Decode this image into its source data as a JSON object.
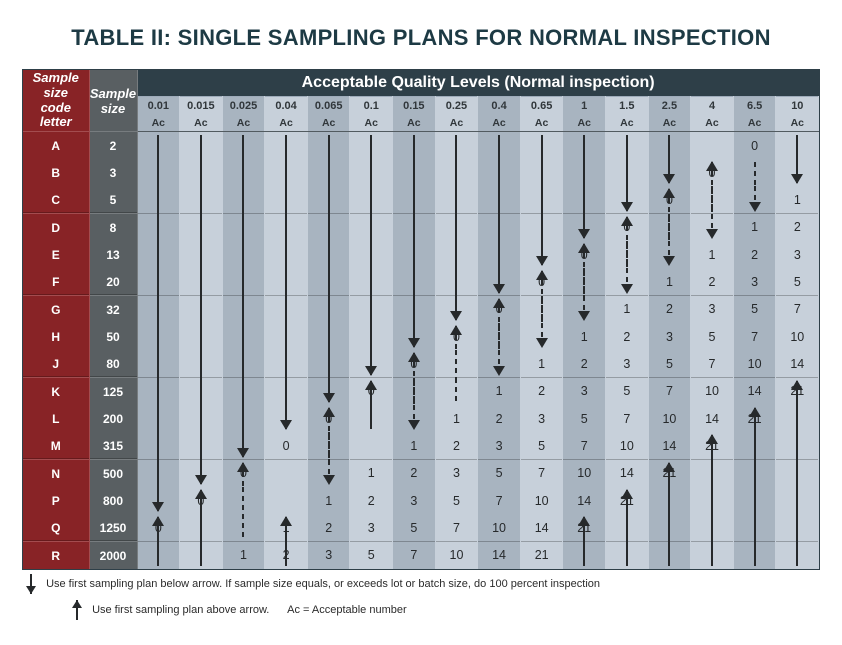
{
  "title": "TABLE II: SINGLE SAMPLING PLANS FOR NORMAL INSPECTION",
  "headers": {
    "corner": "Sample size\ncode letter",
    "sampleSize": "Sample\nsize",
    "aqlTitle": "Acceptable Quality Levels (Normal inspection)",
    "acLabel": "Ac"
  },
  "aqlLevels": [
    "0.01",
    "0.015",
    "0.025",
    "0.04",
    "0.065",
    "0.1",
    "0.15",
    "0.25",
    "0.4",
    "0.65",
    "1",
    "1.5",
    "2.5",
    "4",
    "6.5",
    "10"
  ],
  "rows": [
    {
      "code": "A",
      "size": "2"
    },
    {
      "code": "B",
      "size": "3"
    },
    {
      "code": "C",
      "size": "5"
    },
    {
      "code": "D",
      "size": "8"
    },
    {
      "code": "E",
      "size": "13"
    },
    {
      "code": "F",
      "size": "20"
    },
    {
      "code": "G",
      "size": "32"
    },
    {
      "code": "H",
      "size": "50"
    },
    {
      "code": "J",
      "size": "80"
    },
    {
      "code": "K",
      "size": "125"
    },
    {
      "code": "L",
      "size": "200"
    },
    {
      "code": "M",
      "size": "315"
    },
    {
      "code": "N",
      "size": "500"
    },
    {
      "code": "P",
      "size": "800"
    },
    {
      "code": "Q",
      "size": "1250"
    },
    {
      "code": "R",
      "size": "2000"
    }
  ],
  "rowSeparatorsAfter": [
    2,
    5,
    8,
    11,
    14
  ],
  "cells": {
    "A": {
      "6.5": "0"
    },
    "B": {
      "4": "0"
    },
    "C": {
      "2.5": "0",
      "10": "1"
    },
    "D": {
      "1.5": "0",
      "6.5": "1",
      "10": "2"
    },
    "E": {
      "1": "0",
      "4": "1",
      "6.5": "2",
      "10": "3"
    },
    "F": {
      "0.65": "0",
      "2.5": "1",
      "4": "2",
      "6.5": "3",
      "10": "5"
    },
    "G": {
      "0.4": "0",
      "1.5": "1",
      "2.5": "2",
      "4": "3",
      "6.5": "5",
      "10": "7"
    },
    "H": {
      "0.25": "0",
      "1": "1",
      "1.5": "2",
      "2.5": "3",
      "4": "5",
      "6.5": "7",
      "10": "10"
    },
    "J": {
      "0.15": "0",
      "0.65": "1",
      "1": "2",
      "1.5": "3",
      "2.5": "5",
      "4": "7",
      "6.5": "10",
      "10": "14"
    },
    "K": {
      "0.1": "0",
      "0.4": "1",
      "0.65": "2",
      "1": "3",
      "1.5": "5",
      "2.5": "7",
      "4": "10",
      "6.5": "14",
      "10": "21"
    },
    "L": {
      "0.065": "0",
      "0.25": "1",
      "0.4": "2",
      "0.65": "3",
      "1": "5",
      "1.5": "7",
      "2.5": "10",
      "4": "14",
      "6.5": "21"
    },
    "M": {
      "0.04": "0",
      "0.15": "1",
      "0.25": "2",
      "0.4": "3",
      "0.65": "5",
      "1": "7",
      "1.5": "10",
      "2.5": "14",
      "4": "21"
    },
    "N": {
      "0.025": "0",
      "0.1": "1",
      "0.15": "2",
      "0.25": "3",
      "0.4": "5",
      "0.65": "7",
      "1": "10",
      "1.5": "14",
      "2.5": "21"
    },
    "P": {
      "0.015": "0",
      "0.065": "1",
      "0.1": "2",
      "0.15": "3",
      "0.25": "5",
      "0.4": "7",
      "0.65": "10",
      "1": "14",
      "1.5": "21"
    },
    "Q": {
      "0.01": "0",
      "0.04": "1",
      "0.065": "2",
      "0.1": "3",
      "0.15": "5",
      "0.25": "7",
      "0.4": "10",
      "0.65": "14",
      "1": "21"
    },
    "R": {
      "0.025": "1",
      "0.04": "2",
      "0.065": "3",
      "0.1": "5",
      "0.15": "7",
      "0.25": "10",
      "0.4": "14",
      "0.65": "21"
    }
  },
  "arrows": [
    {
      "col": "0.01",
      "dir": "down",
      "style": "solid",
      "from": "A",
      "to": "P"
    },
    {
      "col": "0.015",
      "dir": "down",
      "style": "solid",
      "from": "A",
      "to": "N"
    },
    {
      "col": "0.025",
      "dir": "down",
      "style": "solid",
      "from": "A",
      "to": "M"
    },
    {
      "col": "0.04",
      "dir": "down",
      "style": "solid",
      "from": "A",
      "to": "L"
    },
    {
      "col": "0.065",
      "dir": "down",
      "style": "solid",
      "from": "A",
      "to": "K"
    },
    {
      "col": "0.1",
      "dir": "down",
      "style": "solid",
      "from": "A",
      "to": "J"
    },
    {
      "col": "0.15",
      "dir": "down",
      "style": "solid",
      "from": "A",
      "to": "H"
    },
    {
      "col": "0.25",
      "dir": "down",
      "style": "solid",
      "from": "A",
      "to": "G"
    },
    {
      "col": "0.4",
      "dir": "down",
      "style": "solid",
      "from": "A",
      "to": "F"
    },
    {
      "col": "0.65",
      "dir": "down",
      "style": "solid",
      "from": "A",
      "to": "E"
    },
    {
      "col": "1",
      "dir": "down",
      "style": "solid",
      "from": "A",
      "to": "D"
    },
    {
      "col": "1.5",
      "dir": "down",
      "style": "solid",
      "from": "A",
      "to": "C"
    },
    {
      "col": "2.5",
      "dir": "down",
      "style": "solid",
      "from": "A",
      "to": "B"
    },
    {
      "col": "10",
      "dir": "down",
      "style": "solid",
      "from": "A",
      "to": "B"
    },
    {
      "col": "4",
      "dir": "up",
      "style": "dash",
      "from": "B",
      "to": "C"
    },
    {
      "col": "2.5",
      "dir": "up",
      "style": "dash",
      "from": "C",
      "to": "E"
    },
    {
      "col": "1.5",
      "dir": "up",
      "style": "dash",
      "from": "D",
      "to": "F"
    },
    {
      "col": "1",
      "dir": "up",
      "style": "dash",
      "from": "E",
      "to": "G"
    },
    {
      "col": "0.65",
      "dir": "up",
      "style": "dash",
      "from": "F",
      "to": "H"
    },
    {
      "col": "0.4",
      "dir": "up",
      "style": "dash",
      "from": "G",
      "to": "J"
    },
    {
      "col": "0.25",
      "dir": "up",
      "style": "dash",
      "from": "H",
      "to": "K"
    },
    {
      "col": "0.15",
      "dir": "up",
      "style": "dash",
      "from": "J",
      "to": "L"
    },
    {
      "col": "0.065",
      "dir": "up",
      "style": "dash",
      "from": "L",
      "to": "N"
    },
    {
      "col": "0.025",
      "dir": "up",
      "style": "dash",
      "from": "N",
      "to": "Q"
    },
    {
      "col": "6.5",
      "dir": "down",
      "style": "dash",
      "from": "B",
      "to": "C"
    },
    {
      "col": "4",
      "dir": "down",
      "style": "dash",
      "from": "C",
      "to": "D"
    },
    {
      "col": "2.5",
      "dir": "down",
      "style": "dash",
      "from": "D",
      "to": "E"
    },
    {
      "col": "1.5",
      "dir": "down",
      "style": "dash",
      "from": "E",
      "to": "F"
    },
    {
      "col": "1",
      "dir": "down",
      "style": "dash",
      "from": "F",
      "to": "G"
    },
    {
      "col": "0.65",
      "dir": "down",
      "style": "dash",
      "from": "G",
      "to": "H"
    },
    {
      "col": "0.4",
      "dir": "down",
      "style": "dash",
      "from": "H",
      "to": "J"
    },
    {
      "col": "0.15",
      "dir": "down",
      "style": "dash",
      "from": "K",
      "to": "L"
    },
    {
      "col": "0.065",
      "dir": "down",
      "style": "dash",
      "from": "M",
      "to": "N"
    },
    {
      "col": "0.01",
      "dir": "up",
      "style": "solid",
      "from": "Q",
      "to": "R"
    },
    {
      "col": "0.015",
      "dir": "up",
      "style": "solid",
      "from": "P",
      "to": "R"
    },
    {
      "col": "0.04",
      "dir": "up",
      "style": "solid",
      "from": "Q",
      "to": "R"
    },
    {
      "col": "0.1",
      "dir": "up",
      "style": "solid",
      "from": "K",
      "to": "L"
    },
    {
      "col": "1",
      "dir": "up",
      "style": "solid",
      "from": "Q",
      "to": "R"
    },
    {
      "col": "1.5",
      "dir": "up",
      "style": "solid",
      "from": "P",
      "to": "R"
    },
    {
      "col": "2.5",
      "dir": "up",
      "style": "solid",
      "from": "N",
      "to": "R"
    },
    {
      "col": "4",
      "dir": "up",
      "style": "solid",
      "from": "M",
      "to": "R"
    },
    {
      "col": "6.5",
      "dir": "up",
      "style": "solid",
      "from": "L",
      "to": "R"
    },
    {
      "col": "10",
      "dir": "up",
      "style": "solid",
      "from": "K",
      "to": "R"
    }
  ],
  "footnotes": {
    "down": "Use first sampling plan below arrow. If sample size equals, or exceeds lot or batch size, do 100 percent inspection",
    "up": "Use first sampling plan above arrow.",
    "ac": "Ac = Acceptable number"
  },
  "colors": {
    "headerDark": "#2e3f48",
    "headerRed": "#882326",
    "headerGray": "#595f62",
    "cellDark": "#a8b4c0",
    "cellLight": "#c7d0da",
    "title": "#1d3a44",
    "arrow": "#26292b"
  },
  "layout": {
    "codeColPx": 66,
    "sizeColPx": 48,
    "valColPx": 42.6,
    "rowHeightPx": 27
  }
}
